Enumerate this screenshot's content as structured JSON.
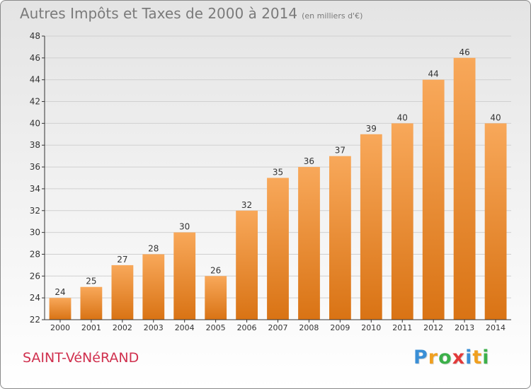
{
  "header": {
    "title": "Autres Impôts et Taxes de 2000 à 2014",
    "unit": "(en milliers d'€)"
  },
  "commune": "SAINT-VéNéRAND",
  "logo": {
    "letters": [
      "P",
      "r",
      "o",
      "x",
      "i",
      "t",
      "i"
    ],
    "colors": [
      "#3a8fd6",
      "#f0a020",
      "#3cb04a",
      "#e23a3a",
      "#3a8fd6",
      "#f0a020",
      "#3cb04a"
    ]
  },
  "colors": {
    "bar_top": "#f8a85a",
    "bar_bottom": "#d97314",
    "grid": "#d0d0d0",
    "axis": "#333333",
    "text": "#333333"
  },
  "chart_data": {
    "type": "bar",
    "title": "Autres Impôts et Taxes de 2000 à 2014",
    "subtitle": "(en milliers d'€)",
    "xlabel": "",
    "ylabel": "",
    "categories": [
      "2000",
      "2001",
      "2002",
      "2003",
      "2004",
      "2005",
      "2006",
      "2007",
      "2008",
      "2009",
      "2010",
      "2011",
      "2012",
      "2013",
      "2014"
    ],
    "values": [
      24,
      25,
      27,
      28,
      30,
      26,
      32,
      35,
      36,
      37,
      39,
      40,
      44,
      46,
      40
    ],
    "ylim": [
      22,
      48
    ],
    "yticks": [
      22,
      24,
      26,
      28,
      30,
      32,
      34,
      36,
      38,
      40,
      42,
      44,
      46,
      48
    ],
    "grid": true,
    "legend": "none"
  }
}
